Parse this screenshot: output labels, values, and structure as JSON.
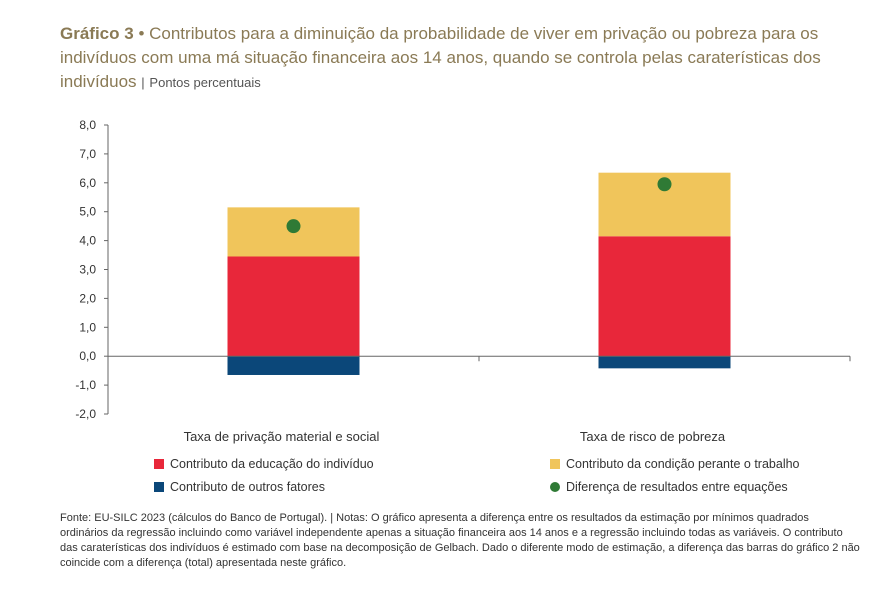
{
  "title": {
    "label": "Gráfico 3",
    "bullet": "•",
    "text": "Contributos para a diminuição da probabilidade de viver em privação ou pobreza para os indivíduos com uma má situação financeira aos 14 anos, quando se controla pelas caraterísticas dos indivíduos",
    "separator": "|",
    "units": "Pontos percentuais"
  },
  "colors": {
    "educacao": "#e8273a",
    "trabalho": "#f0c55b",
    "outros": "#0b4779",
    "diferenca": "#2f7a35",
    "title": "#8a7a55",
    "axis": "#666666"
  },
  "chart_data": {
    "type": "bar",
    "stacked": true,
    "categories": [
      "Taxa de privação material e social",
      "Taxa de risco de pobreza"
    ],
    "series": [
      {
        "name": "Contributo da educação do indivíduo",
        "key": "educacao",
        "values": [
          3.45,
          4.15
        ]
      },
      {
        "name": "Contributo da condição perante o trabalho",
        "key": "trabalho",
        "values": [
          1.7,
          2.2
        ]
      },
      {
        "name": "Contributo de outros fatores",
        "key": "outros",
        "values": [
          -0.65,
          -0.42
        ]
      }
    ],
    "points": {
      "name": "Diferença de resultados entre equações",
      "key": "diferenca",
      "values": [
        4.5,
        5.95
      ]
    },
    "ylim": [
      -2.0,
      8.0
    ],
    "yticks": [
      "8,0",
      "7,0",
      "6,0",
      "5,0",
      "4,0",
      "3,0",
      "2,0",
      "1,0",
      "0,0",
      "-1,0",
      "-2,0"
    ],
    "legend": [
      {
        "label": "Contributo da educação do indivíduo",
        "key": "educacao",
        "shape": "square"
      },
      {
        "label": "Contributo da condição perante o trabalho",
        "key": "trabalho",
        "shape": "square"
      },
      {
        "label": "Contributo de outros fatores",
        "key": "outros",
        "shape": "square"
      },
      {
        "label": "Diferença de resultados entre equações",
        "key": "diferenca",
        "shape": "circle"
      }
    ],
    "legend_position": "bottom"
  },
  "source": "Fonte: EU-SILC 2023 (cálculos do Banco de Portugal). | Notas: O gráfico apresenta a diferença entre os resultados da estimação por mínimos quadrados ordinários da regressão incluindo como variável independente apenas a situação financeira aos 14 anos e a regressão incluindo todas as variáveis. O contributo das caraterísticas dos indivíduos é estimado com base na decomposição de Gelbach. Dado o diferente modo de estimação, a diferença das barras do gráfico 2 não coincide com a diferença (total) apresentada neste gráfico."
}
